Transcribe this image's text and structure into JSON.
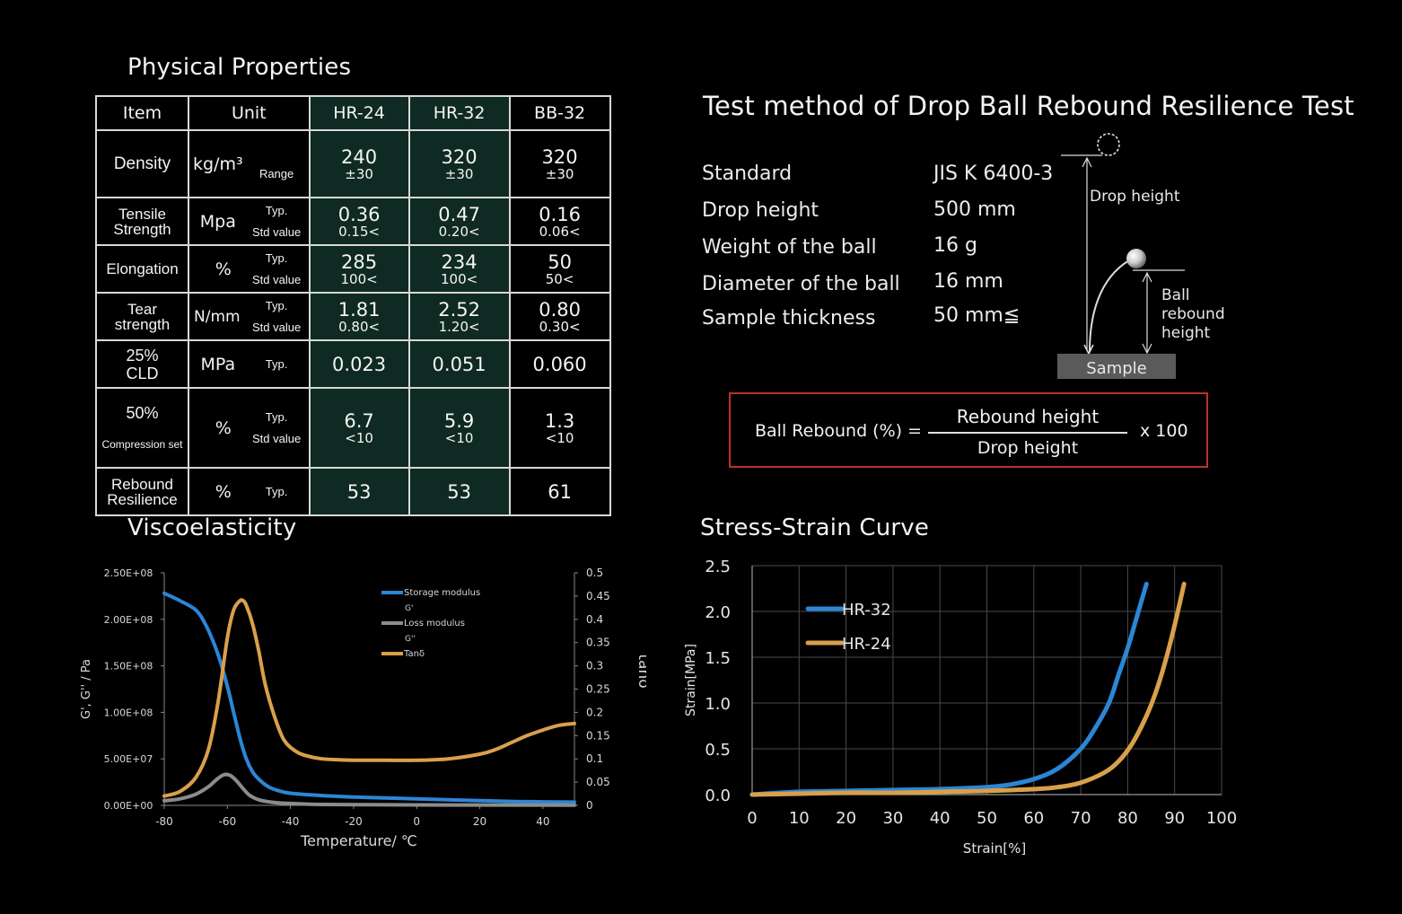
{
  "titles": {
    "physical": "Physical Properties",
    "test_method": "Test method of Drop Ball Rebound Resilience Test",
    "visco": "Viscoelasticity",
    "stress": "Stress-Strain Curve"
  },
  "table": {
    "headers": {
      "item": "Item",
      "unit": "Unit",
      "hr24": "HR-24",
      "hr32": "HR-32",
      "bb32": "BB-32"
    },
    "rows": [
      {
        "item": "Density",
        "unit": "kg/m³",
        "sub": "Range",
        "hr24": "240",
        "hr24_sub": "±30",
        "hr32": "320",
        "hr32_sub": "±30",
        "bb32": "320",
        "bb32_sub": "±30"
      },
      {
        "item": "Tensile\nStrength",
        "unit": "Mpa",
        "sub": "Typ.\nStd value",
        "hr24": "0.36",
        "hr24_sub": "0.15<",
        "hr32": "0.47",
        "hr32_sub": "0.20<",
        "bb32": "0.16",
        "bb32_sub": "0.06<"
      },
      {
        "item": "Elongation",
        "unit": "%",
        "sub": "Typ.\nStd value",
        "hr24": "285",
        "hr24_sub": "100<",
        "hr32": "234",
        "hr32_sub": "100<",
        "bb32": "50",
        "bb32_sub": "50<"
      },
      {
        "item": "Tear\nstrength",
        "unit": "N/mm",
        "sub": "Typ.\nStd value",
        "hr24": "1.81",
        "hr24_sub": "0.80<",
        "hr32": "2.52",
        "hr32_sub": "1.20<",
        "bb32": "0.80",
        "bb32_sub": "0.30<"
      },
      {
        "item": "25%\nCLD",
        "unit": "MPa",
        "sub": "Typ.",
        "hr24": "0.023",
        "hr32": "0.051",
        "bb32": "0.060"
      },
      {
        "item_main": "50%",
        "item_small": "Compression set",
        "unit": "%",
        "sub": "Typ.\nStd value",
        "hr24": "6.7",
        "hr24_sub": "<10",
        "hr32": "5.9",
        "hr32_sub": "<10",
        "bb32": "1.3",
        "bb32_sub": "<10"
      },
      {
        "item": "Rebound\nResilience",
        "unit": "%",
        "sub": "Typ.",
        "hr24": "53",
        "hr32": "53",
        "bb32": "61"
      }
    ]
  },
  "test": {
    "specs": [
      {
        "label": "Standard",
        "value": "JIS K 6400-3"
      },
      {
        "label": "Drop height",
        "value": "500 mm"
      },
      {
        "label": "Weight of the ball",
        "value": "16 g"
      },
      {
        "label": "Diameter of the ball",
        "value": "16 mm"
      },
      {
        "label": "Sample thickness",
        "value": "50 mm≦"
      }
    ],
    "diagram": {
      "drop_height": "Drop height",
      "ball_rebound_line1": "Ball",
      "ball_rebound_line2": "rebound",
      "ball_rebound_line3": "height",
      "sample": "Sample"
    },
    "formula": {
      "lhs": "Ball Rebound (%) =",
      "numerator": "Rebound height",
      "denominator": "Drop height",
      "multiplier": "x 100"
    },
    "colors": {
      "formula_border": "#c0302a",
      "sample_box": "#5a5a5a"
    }
  },
  "chart_data": [
    {
      "type": "line",
      "title": "",
      "xlabel": "Temperature/ ℃",
      "ylabel": "G', G'' / Pa",
      "y2label": "tanδ",
      "xlim": [
        -80,
        50
      ],
      "ylim": [
        0,
        250000000
      ],
      "y2lim": [
        0,
        0.5
      ],
      "x_ticks": [
        "-80",
        "-60",
        "-40",
        "-20",
        "0",
        "20",
        "40"
      ],
      "y_ticks": [
        "0.00E+00",
        "5.00E+07",
        "1.00E+08",
        "1.50E+08",
        "2.00E+08",
        "2.50E+08"
      ],
      "y2_ticks": [
        "0",
        "0.05",
        "0.1",
        "0.15",
        "0.2",
        "0.25",
        "0.3",
        "0.35",
        "0.4",
        "0.45",
        "0.5"
      ],
      "legend": [
        "Storage modulus",
        "G'",
        "Loss modulus",
        "G''",
        "Tanδ"
      ],
      "legend_position": "top-right",
      "series": [
        {
          "name": "Storage modulus",
          "axis": "left",
          "color": "#2b86d6",
          "x": [
            -80,
            -75,
            -70,
            -67,
            -64,
            -62,
            -60,
            -58,
            -56,
            -54,
            -52,
            -50,
            -47,
            -44,
            -40,
            -30,
            -20,
            -10,
            0,
            10,
            20,
            30,
            40,
            50
          ],
          "y": [
            228000000,
            220000000,
            210000000,
            195000000,
            172000000,
            152000000,
            128000000,
            100000000,
            72000000,
            50000000,
            36000000,
            28000000,
            20000000,
            16000000,
            13000000,
            10500000,
            9000000,
            8000000,
            7000000,
            6000000,
            5000000,
            4200000,
            3800000,
            3500000
          ]
        },
        {
          "name": "Loss modulus",
          "axis": "left",
          "color": "#8c8c8c",
          "x": [
            -80,
            -75,
            -70,
            -66,
            -63,
            -61,
            -59,
            -57,
            -55,
            -53,
            -50,
            -45,
            -40,
            -30,
            0,
            50
          ],
          "y": [
            5000000,
            7000000,
            12000000,
            20000000,
            29000000,
            33000000,
            32000000,
            26000000,
            18000000,
            11000000,
            6000000,
            3000000,
            2000000,
            1000000,
            500000,
            300000
          ]
        },
        {
          "name": "Tanδ",
          "axis": "right",
          "color": "#d9a04b",
          "x": [
            -80,
            -75,
            -70,
            -66,
            -63,
            -60,
            -58,
            -56,
            -55,
            -54,
            -52,
            -50,
            -48,
            -45,
            -42,
            -38,
            -34,
            -30,
            -25,
            -20,
            -10,
            0,
            10,
            20,
            25,
            30,
            35,
            40,
            45,
            50
          ],
          "y": [
            0.02,
            0.03,
            0.06,
            0.12,
            0.22,
            0.36,
            0.42,
            0.44,
            0.44,
            0.43,
            0.39,
            0.33,
            0.26,
            0.19,
            0.14,
            0.115,
            0.105,
            0.1,
            0.098,
            0.097,
            0.097,
            0.097,
            0.1,
            0.11,
            0.12,
            0.135,
            0.15,
            0.162,
            0.172,
            0.176
          ]
        }
      ]
    },
    {
      "type": "line",
      "title": "",
      "xlabel": "Strain[%]",
      "ylabel": "Strain[MPa]",
      "xlim": [
        0,
        100
      ],
      "ylim": [
        0,
        2.5
      ],
      "x_ticks": [
        "0",
        "10",
        "20",
        "30",
        "40",
        "50",
        "60",
        "70",
        "80",
        "90",
        "100"
      ],
      "y_ticks": [
        "0.0",
        "0.5",
        "1.0",
        "1.5",
        "2.0",
        "2.5"
      ],
      "grid": true,
      "legend_position": "top-left",
      "series": [
        {
          "name": "HR-32",
          "color": "#2b86d6",
          "x": [
            0,
            10,
            20,
            30,
            40,
            50,
            55,
            60,
            65,
            70,
            73,
            76,
            78,
            80,
            82,
            84
          ],
          "y": [
            0.0,
            0.03,
            0.04,
            0.05,
            0.06,
            0.08,
            0.11,
            0.17,
            0.28,
            0.5,
            0.72,
            1.0,
            1.3,
            1.6,
            1.95,
            2.3
          ]
        },
        {
          "name": "HR-24",
          "color": "#d9a04b",
          "x": [
            0,
            10,
            20,
            30,
            40,
            50,
            60,
            65,
            70,
            75,
            78,
            81,
            84,
            86,
            88,
            90,
            92
          ],
          "y": [
            0.0,
            0.01,
            0.02,
            0.02,
            0.03,
            0.04,
            0.06,
            0.08,
            0.13,
            0.24,
            0.36,
            0.56,
            0.86,
            1.12,
            1.45,
            1.85,
            2.3
          ]
        }
      ]
    }
  ]
}
